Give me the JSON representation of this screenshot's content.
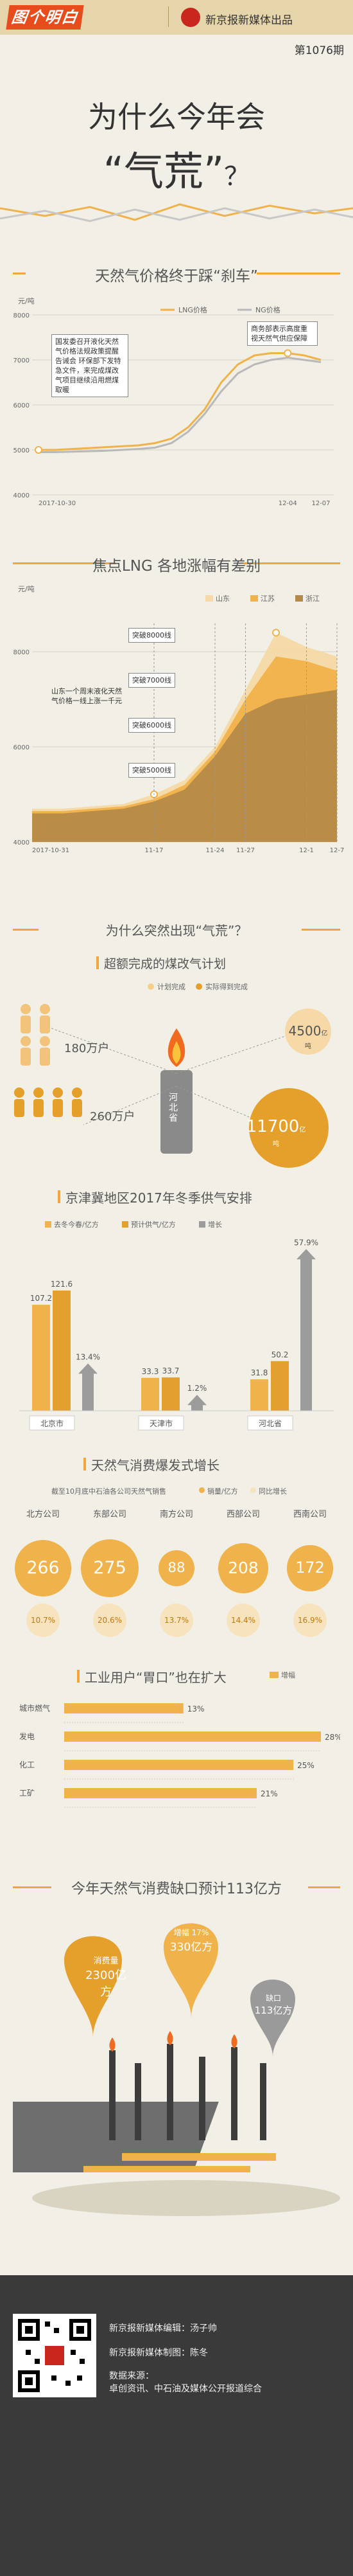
{
  "header": {
    "logo": "图个明白",
    "brand": "新京报新媒体出品",
    "issue": "第1076期"
  },
  "hero": {
    "title_line1": "为什么今年会",
    "title_line2": "“气荒”",
    "title_q": "？"
  },
  "section1": {
    "title": "天然气价格终于踩“刹车”",
    "unit": "元/吨",
    "annotation_left": "国发委召开液化天然气价格法规政策提醒告诫会 环保部下发特急文件，来完成煤改气项目继续沿用燃煤取暖",
    "annotation_right": "商务部表示高度重视天然气供应保障",
    "colors": {
      "lng": "#f0b24a",
      "ng": "#b9b9b9"
    }
  },
  "section2": {
    "title": "焦点LNG 各地涨幅有差别",
    "unit": "元/吨",
    "annotation": "山东一个周末液化天然气价格一线上涨一千元",
    "breaks": [
      "突破8000线",
      "突破7000线",
      "突破6000线",
      "突破5000线"
    ]
  },
  "section3": {
    "title": "为什么突然出现“气荒”？",
    "sub_title": "超额完成的煤改气计划",
    "legend_plan": "计划完成",
    "legend_actual": "实际得到完成",
    "people_plan": "180万户",
    "people_actual": "260万户",
    "province": "河北省",
    "circle_plan_value": "4500",
    "circle_plan_unit": "亿吨",
    "circle_actual_value": "11700",
    "circle_actual_unit": "亿吨"
  },
  "section4": {
    "title": "京津冀地区2017年冬季供气安排",
    "legend": [
      "去冬今春/亿方",
      "预计供气/亿方",
      "增长"
    ],
    "colors": {
      "last": "#f0b24a",
      "plan": "#e2a02f",
      "growth": "#9c9c9c"
    }
  },
  "section5": {
    "title": "天然气消费爆发式增长",
    "note": "截至10月底中石油各公司天然气销售",
    "legend": [
      "销量/亿方",
      "同比增长"
    ],
    "companies": [
      {
        "name": "北方公司",
        "value": "266",
        "growth": "10.7%"
      },
      {
        "name": "东部公司",
        "value": "275",
        "growth": "20.6%"
      },
      {
        "name": "南方公司",
        "value": "88",
        "growth": "13.7%"
      },
      {
        "name": "西部公司",
        "value": "208",
        "growth": "14.4%"
      },
      {
        "name": "西南公司",
        "value": "172",
        "growth": "16.9%"
      }
    ]
  },
  "section6": {
    "title": "工业用户“胃口”也在扩大",
    "legend": "增幅"
  },
  "section7": {
    "title": "今年天然气消费缺口预计113亿方",
    "consumption_label": "消费量",
    "consumption_value": "2300亿方",
    "growth_label": "增幅",
    "growth_pct": "17%",
    "growth_value": "330亿方",
    "gap_label": "缺口",
    "gap_value": "113亿方"
  },
  "footer": {
    "editor": "新京报新媒体编辑：汤子帅",
    "maker": "新京报新媒体制图：陈冬",
    "source_label": "数据来源：",
    "source": "卓创资讯、中石油及媒体公开报道综合"
  },
  "chart_data": [
    {
      "type": "line",
      "title": "天然气价格终于踩“刹车”",
      "ylabel": "元/吨",
      "x_ticks": [
        "2017-10-30",
        "12-04",
        "12-07"
      ],
      "ylim": [
        4000,
        8000
      ],
      "y_ticks": [
        4000,
        5000,
        6000,
        7000,
        8000
      ],
      "series": [
        {
          "name": "LNG价格",
          "points": [
            5000,
            5000,
            5020,
            5040,
            5060,
            5080,
            5100,
            5150,
            5250,
            5500,
            5900,
            6500,
            6900,
            7100,
            7150,
            7150,
            7100,
            7000
          ]
        },
        {
          "name": "NG价格",
          "points": [
            4950,
            4950,
            4960,
            4970,
            4980,
            5000,
            5020,
            5050,
            5150,
            5400,
            5800,
            6300,
            6700,
            6900,
            7000,
            7050,
            7000,
            6950
          ]
        }
      ]
    },
    {
      "type": "area",
      "title": "焦点LNG 各地涨幅有差别",
      "ylabel": "元/吨",
      "x_ticks": [
        "2017-10-31",
        "11-17",
        "11-24",
        "11-27",
        "12-1",
        "12-7"
      ],
      "ylim": [
        4000,
        9000
      ],
      "y_ticks": [
        4000,
        6000,
        8000
      ],
      "series": [
        {
          "name": "山东",
          "points": [
            4700,
            4700,
            4750,
            4800,
            5000,
            5300,
            6000,
            7200,
            8400,
            8100,
            7900
          ]
        },
        {
          "name": "江苏",
          "points": [
            4650,
            4650,
            4700,
            4750,
            4900,
            5200,
            5900,
            7000,
            7900,
            7800,
            7600
          ]
        },
        {
          "name": "浙江",
          "points": [
            4600,
            4600,
            4650,
            4700,
            4850,
            5100,
            5800,
            6700,
            7000,
            7100,
            7200
          ]
        }
      ]
    },
    {
      "type": "bar",
      "title": "京津冀地区2017年冬季供气安排",
      "categories": [
        "北京市",
        "天津市",
        "河北省"
      ],
      "series": [
        {
          "name": "去冬今春/亿方",
          "values": [
            107.2,
            33.3,
            31.8
          ]
        },
        {
          "name": "预计供气/亿方",
          "values": [
            121.6,
            33.7,
            50.2
          ]
        },
        {
          "name": "增长",
          "values": [
            13.4,
            1.2,
            57.9
          ],
          "labels": [
            "13.4%",
            "1.2%",
            "57.9%"
          ]
        }
      ]
    },
    {
      "type": "bar",
      "title": "工业用户“胃口”也在扩大",
      "categories": [
        "城市燃气",
        "发电",
        "化工",
        "工矿"
      ],
      "values": [
        13,
        28,
        25,
        21
      ],
      "labels": [
        "13%",
        "28%",
        "25%",
        "21%"
      ]
    }
  ]
}
